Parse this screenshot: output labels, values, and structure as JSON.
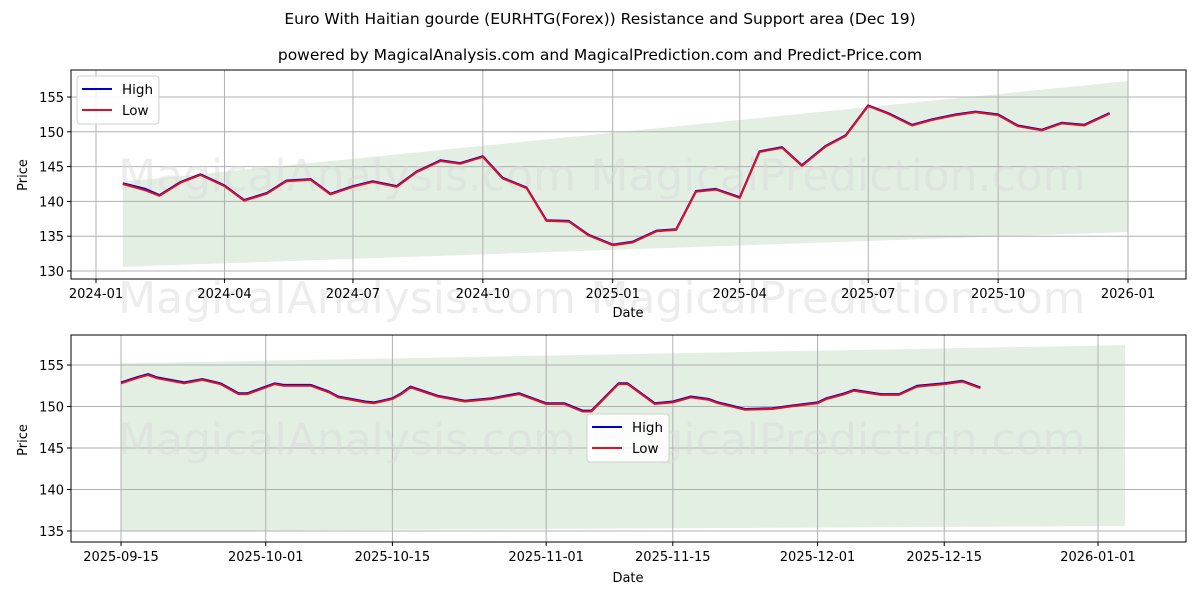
{
  "header": {
    "title": "Euro With Haitian gourde (EURHTG(Forex)) Resistance and Support area (Dec 19)",
    "subtitle": "powered by MagicalAnalysis.com and MagicalPrediction.com and Predict-Price.com"
  },
  "watermarks": [
    "MagicalAnalysis.com",
    "MagicalPrediction.com"
  ],
  "colors": {
    "high": "#0000cc",
    "low": "#dd1122",
    "band": "#e3efe3",
    "grid": "#b0b0b0"
  },
  "legend": {
    "high": "High",
    "low": "Low"
  },
  "chart_data": [
    {
      "type": "line",
      "title": "Euro With Haitian gourde (EURHTG(Forex)) Resistance and Support area (Dec 19)",
      "xlabel": "Date",
      "ylabel": "Price",
      "ylim": [
        129,
        158.5
      ],
      "yticks": [
        130,
        135,
        140,
        145,
        150,
        155
      ],
      "xticks": [
        "2024-01",
        "2024-04",
        "2024-07",
        "2024-10",
        "2025-01",
        "2025-04",
        "2025-07",
        "2025-10",
        "2026-01"
      ],
      "grid": true,
      "legend_position": "upper left",
      "legend": [
        "High",
        "Low"
      ],
      "band": {
        "label": "Resistance and Support area",
        "x": [
          "2024-01-20",
          "2026-01-01"
        ],
        "upper": [
          142.8,
          157.3
        ],
        "lower": [
          130.6,
          135.6
        ]
      },
      "x": [
        "2024-01-20",
        "2024-02-05",
        "2024-02-15",
        "2024-03-01",
        "2024-03-15",
        "2024-04-01",
        "2024-04-15",
        "2024-05-01",
        "2024-05-15",
        "2024-06-01",
        "2024-06-15",
        "2024-07-01",
        "2024-07-15",
        "2024-08-01",
        "2024-08-15",
        "2024-09-01",
        "2024-09-15",
        "2024-10-01",
        "2024-10-15",
        "2024-11-01",
        "2024-11-15",
        "2024-12-01",
        "2024-12-15",
        "2025-01-01",
        "2025-01-15",
        "2025-02-01",
        "2025-02-15",
        "2025-03-01",
        "2025-03-15",
        "2025-04-01",
        "2025-04-15",
        "2025-05-01",
        "2025-05-15",
        "2025-06-01",
        "2025-06-15",
        "2025-07-01",
        "2025-07-15",
        "2025-08-01",
        "2025-08-15",
        "2025-09-01",
        "2025-09-15",
        "2025-10-01",
        "2025-10-15",
        "2025-11-01",
        "2025-11-15",
        "2025-12-01",
        "2025-12-19"
      ],
      "series": [
        {
          "name": "High",
          "values": [
            142.6,
            141.8,
            140.9,
            142.8,
            143.9,
            142.3,
            140.2,
            141.2,
            143.0,
            143.2,
            141.1,
            142.2,
            142.9,
            142.2,
            144.3,
            145.9,
            145.5,
            146.5,
            143.4,
            142.0,
            137.3,
            137.2,
            135.2,
            133.8,
            134.2,
            135.8,
            136.0,
            141.5,
            141.8,
            140.6,
            147.2,
            147.8,
            145.2,
            148.0,
            149.5,
            153.8,
            152.7,
            151.0,
            151.8,
            152.5,
            152.9,
            152.5,
            150.9,
            150.3,
            151.3,
            151.0,
            152.7
          ]
        },
        {
          "name": "Low",
          "values": [
            142.5,
            141.6,
            140.8,
            142.7,
            143.8,
            142.2,
            140.1,
            141.1,
            142.9,
            143.1,
            141.0,
            142.1,
            142.8,
            142.1,
            144.2,
            145.8,
            145.4,
            146.4,
            143.3,
            141.9,
            137.2,
            137.1,
            135.1,
            133.7,
            134.1,
            135.7,
            135.9,
            141.4,
            141.7,
            140.5,
            147.1,
            147.7,
            145.1,
            147.9,
            149.4,
            153.7,
            152.6,
            150.9,
            151.7,
            152.4,
            152.8,
            152.4,
            150.8,
            150.2,
            151.2,
            150.9,
            152.6
          ]
        }
      ]
    },
    {
      "type": "line",
      "xlabel": "Date",
      "ylabel": "Price",
      "ylim": [
        133.5,
        158.5
      ],
      "yticks": [
        135,
        140,
        145,
        150,
        155
      ],
      "xticks": [
        "2025-09-15",
        "2025-10-01",
        "2025-10-15",
        "2025-11-01",
        "2025-11-15",
        "2025-12-01",
        "2025-12-15",
        "2026-01-01"
      ],
      "grid": true,
      "legend_position": "center",
      "legend": [
        "High",
        "Low"
      ],
      "band": {
        "label": "Resistance and Support area",
        "x": [
          "2025-09-15",
          "2026-01-04"
        ],
        "upper": [
          155.2,
          157.4
        ],
        "lower": [
          135.0,
          135.6
        ]
      },
      "x": [
        "2025-09-15",
        "2025-09-17",
        "2025-09-18",
        "2025-09-19",
        "2025-09-22",
        "2025-09-24",
        "2025-09-26",
        "2025-09-28",
        "2025-09-29",
        "2025-10-01",
        "2025-10-02",
        "2025-10-03",
        "2025-10-06",
        "2025-10-08",
        "2025-10-09",
        "2025-10-12",
        "2025-10-13",
        "2025-10-15",
        "2025-10-16",
        "2025-10-17",
        "2025-10-20",
        "2025-10-23",
        "2025-10-26",
        "2025-10-29",
        "2025-11-01",
        "2025-11-03",
        "2025-11-05",
        "2025-11-06",
        "2025-11-09",
        "2025-11-10",
        "2025-11-13",
        "2025-11-15",
        "2025-11-17",
        "2025-11-19",
        "2025-11-20",
        "2025-11-23",
        "2025-11-26",
        "2025-11-28",
        "2025-12-01",
        "2025-12-02",
        "2025-12-04",
        "2025-12-05",
        "2025-12-08",
        "2025-12-10",
        "2025-12-12",
        "2025-12-15",
        "2025-12-17",
        "2025-12-19"
      ],
      "series": [
        {
          "name": "High",
          "values": [
            152.9,
            153.6,
            153.9,
            153.5,
            152.9,
            153.3,
            152.8,
            151.6,
            151.6,
            152.4,
            152.8,
            152.6,
            152.6,
            151.8,
            151.2,
            150.6,
            150.5,
            151.0,
            151.6,
            152.4,
            151.3,
            150.7,
            151.0,
            151.6,
            150.4,
            150.4,
            149.5,
            149.5,
            152.8,
            152.8,
            150.4,
            150.6,
            151.2,
            150.9,
            150.5,
            149.7,
            149.8,
            150.1,
            150.5,
            151.0,
            151.6,
            152.0,
            151.5,
            151.5,
            152.5,
            152.8,
            153.1,
            152.3
          ]
        },
        {
          "name": "Low",
          "values": [
            152.8,
            153.5,
            153.8,
            153.4,
            152.8,
            153.2,
            152.7,
            151.5,
            151.5,
            152.3,
            152.7,
            152.5,
            152.5,
            151.7,
            151.1,
            150.5,
            150.4,
            150.9,
            151.5,
            152.3,
            151.2,
            150.6,
            150.9,
            151.5,
            150.3,
            150.3,
            149.4,
            149.4,
            152.7,
            152.7,
            150.3,
            150.5,
            151.1,
            150.8,
            150.4,
            149.6,
            149.7,
            150.0,
            150.4,
            150.9,
            151.5,
            151.9,
            151.4,
            151.4,
            152.4,
            152.7,
            153.0,
            152.2
          ]
        }
      ]
    }
  ]
}
